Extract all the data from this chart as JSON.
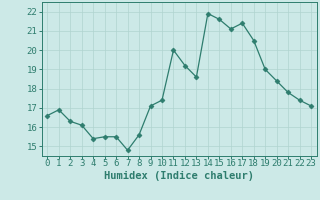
{
  "x": [
    0,
    1,
    2,
    3,
    4,
    5,
    6,
    7,
    8,
    9,
    10,
    11,
    12,
    13,
    14,
    15,
    16,
    17,
    18,
    19,
    20,
    21,
    22,
    23
  ],
  "y": [
    16.6,
    16.9,
    16.3,
    16.1,
    15.4,
    15.5,
    15.5,
    14.8,
    15.6,
    17.1,
    17.4,
    20.0,
    19.2,
    18.6,
    21.9,
    21.6,
    21.1,
    21.4,
    20.5,
    19.0,
    18.4,
    17.8,
    17.4,
    17.1
  ],
  "line_color": "#2e7d6e",
  "marker": "D",
  "marker_size": 2.5,
  "bg_color": "#cce9e7",
  "grid_color_major": "#b0d4d0",
  "grid_color_minor": "#c4dfdc",
  "axis_color": "#2e7d6e",
  "xlabel": "Humidex (Indice chaleur)",
  "xlim": [
    -0.5,
    23.5
  ],
  "ylim": [
    14.5,
    22.5
  ],
  "yticks": [
    15,
    16,
    17,
    18,
    19,
    20,
    21,
    22
  ],
  "xticks": [
    0,
    1,
    2,
    3,
    4,
    5,
    6,
    7,
    8,
    9,
    10,
    11,
    12,
    13,
    14,
    15,
    16,
    17,
    18,
    19,
    20,
    21,
    22,
    23
  ],
  "xlabel_fontsize": 7.5,
  "tick_fontsize": 6.5
}
